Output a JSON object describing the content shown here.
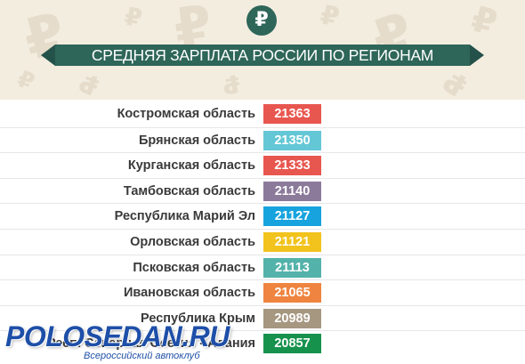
{
  "header": {
    "badge_symbol": "₽",
    "title": "СРЕДНЯЯ ЗАРПЛАТА РОССИИ ПО РЕГИОНАМ",
    "background_glyph": "₽"
  },
  "chart_data": {
    "type": "table",
    "title": "СРЕДНЯЯ ЗАРПЛАТА РОССИИ ПО РЕГИОНАМ",
    "rows": [
      {
        "region": "Костромская область",
        "value": 21363,
        "color": "#e8574f"
      },
      {
        "region": "Брянская область",
        "value": 21350,
        "color": "#64c7d6"
      },
      {
        "region": "Курганская область",
        "value": 21333,
        "color": "#e8574f"
      },
      {
        "region": "Тамбовская область",
        "value": 21140,
        "color": "#8c7a9a"
      },
      {
        "region": "Республика Марий Эл",
        "value": 21127,
        "color": "#17a3de"
      },
      {
        "region": "Орловская область",
        "value": 21121,
        "color": "#f2c31d"
      },
      {
        "region": "Псковская область",
        "value": 21113,
        "color": "#53b2aa"
      },
      {
        "region": "Ивановская область",
        "value": 21065,
        "color": "#ef8440"
      },
      {
        "region": "Республика Крым",
        "value": 20989,
        "color": "#a69781"
      },
      {
        "region": "Респ. Северная Осетия - Алания",
        "value": 20857,
        "color": "#16924c"
      }
    ]
  },
  "watermark": {
    "brand": "POLOSEDAN.RU",
    "tagline": "Всероссийский автоклуб"
  }
}
